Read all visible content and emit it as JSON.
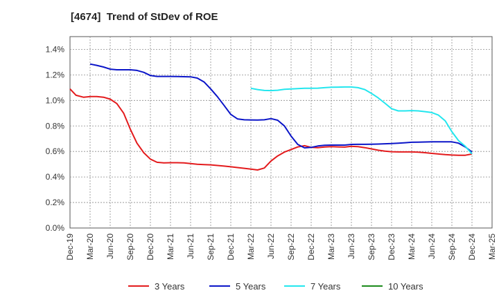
{
  "chart_data": {
    "type": "line",
    "title": "[4674]  Trend of StDev of ROE",
    "xlabel": "",
    "ylabel": "",
    "x_tick_labels": [
      "Dec-19",
      "Mar-20",
      "Jun-20",
      "Sep-20",
      "Dec-20",
      "Mar-21",
      "Jun-21",
      "Sep-21",
      "Dec-21",
      "Mar-22",
      "Jun-22",
      "Sep-22",
      "Dec-22",
      "Mar-23",
      "Jun-23",
      "Sep-23",
      "Dec-23",
      "Mar-24",
      "Jun-24",
      "Sep-24",
      "Dec-24",
      "Mar-25"
    ],
    "y_tick_labels": [
      "0.0%",
      "0.2%",
      "0.4%",
      "0.6%",
      "0.8%",
      "1.0%",
      "1.2%",
      "1.4%"
    ],
    "xlim": [
      0,
      21
    ],
    "ylim": [
      0,
      1.5
    ],
    "grid": true,
    "legend_position": "bottom",
    "series": [
      {
        "name": "3 Years",
        "color": "#e31a1c",
        "points": [
          [
            0,
            1.09
          ],
          [
            0.3,
            1.04
          ],
          [
            0.67,
            1.025
          ],
          [
            1,
            1.03
          ],
          [
            1.33,
            1.03
          ],
          [
            1.67,
            1.025
          ],
          [
            2,
            1.01
          ],
          [
            2.33,
            0.975
          ],
          [
            2.67,
            0.9
          ],
          [
            3,
            0.775
          ],
          [
            3.33,
            0.665
          ],
          [
            3.67,
            0.59
          ],
          [
            4,
            0.54
          ],
          [
            4.33,
            0.515
          ],
          [
            4.67,
            0.51
          ],
          [
            5,
            0.512
          ],
          [
            5.33,
            0.512
          ],
          [
            5.67,
            0.51
          ],
          [
            6,
            0.505
          ],
          [
            6.33,
            0.5
          ],
          [
            6.67,
            0.497
          ],
          [
            7,
            0.495
          ],
          [
            7.33,
            0.49
          ],
          [
            7.67,
            0.485
          ],
          [
            8,
            0.48
          ],
          [
            8.33,
            0.474
          ],
          [
            8.67,
            0.468
          ],
          [
            9,
            0.462
          ],
          [
            9.33,
            0.455
          ],
          [
            9.67,
            0.47
          ],
          [
            10,
            0.525
          ],
          [
            10.33,
            0.565
          ],
          [
            10.67,
            0.595
          ],
          [
            11,
            0.615
          ],
          [
            11.33,
            0.635
          ],
          [
            11.67,
            0.645
          ],
          [
            12,
            0.632
          ],
          [
            12.33,
            0.63
          ],
          [
            12.67,
            0.635
          ],
          [
            13,
            0.638
          ],
          [
            13.33,
            0.636
          ],
          [
            13.67,
            0.634
          ],
          [
            14,
            0.64
          ],
          [
            14.33,
            0.638
          ],
          [
            14.67,
            0.63
          ],
          [
            15,
            0.62
          ],
          [
            15.33,
            0.61
          ],
          [
            15.67,
            0.602
          ],
          [
            16,
            0.598
          ],
          [
            16.33,
            0.596
          ],
          [
            16.67,
            0.596
          ],
          [
            17,
            0.596
          ],
          [
            17.33,
            0.594
          ],
          [
            17.67,
            0.59
          ],
          [
            18,
            0.585
          ],
          [
            18.33,
            0.58
          ],
          [
            18.67,
            0.575
          ],
          [
            19,
            0.572
          ],
          [
            19.33,
            0.57
          ],
          [
            19.67,
            0.57
          ],
          [
            20,
            0.58
          ]
        ]
      },
      {
        "name": "5 Years",
        "color": "#0a14c8",
        "points": [
          [
            1,
            1.285
          ],
          [
            1.33,
            1.275
          ],
          [
            1.67,
            1.262
          ],
          [
            2,
            1.245
          ],
          [
            2.33,
            1.24
          ],
          [
            2.67,
            1.24
          ],
          [
            3,
            1.24
          ],
          [
            3.33,
            1.235
          ],
          [
            3.67,
            1.22
          ],
          [
            4,
            1.195
          ],
          [
            4.33,
            1.188
          ],
          [
            4.67,
            1.188
          ],
          [
            5,
            1.188
          ],
          [
            5.33,
            1.187
          ],
          [
            5.67,
            1.186
          ],
          [
            6,
            1.185
          ],
          [
            6.33,
            1.175
          ],
          [
            6.67,
            1.145
          ],
          [
            7,
            1.09
          ],
          [
            7.33,
            1.03
          ],
          [
            7.67,
            0.96
          ],
          [
            8,
            0.89
          ],
          [
            8.33,
            0.855
          ],
          [
            8.67,
            0.848
          ],
          [
            9,
            0.847
          ],
          [
            9.33,
            0.846
          ],
          [
            9.67,
            0.848
          ],
          [
            10,
            0.857
          ],
          [
            10.33,
            0.845
          ],
          [
            10.67,
            0.8
          ],
          [
            11,
            0.72
          ],
          [
            11.33,
            0.655
          ],
          [
            11.67,
            0.628
          ],
          [
            12,
            0.632
          ],
          [
            12.33,
            0.643
          ],
          [
            12.67,
            0.648
          ],
          [
            13,
            0.65
          ],
          [
            13.33,
            0.65
          ],
          [
            13.67,
            0.65
          ],
          [
            14,
            0.655
          ],
          [
            14.33,
            0.656
          ],
          [
            14.67,
            0.656
          ],
          [
            15,
            0.657
          ],
          [
            15.33,
            0.658
          ],
          [
            15.67,
            0.66
          ],
          [
            16,
            0.662
          ],
          [
            16.33,
            0.665
          ],
          [
            16.67,
            0.668
          ],
          [
            17,
            0.672
          ],
          [
            17.33,
            0.673
          ],
          [
            17.67,
            0.674
          ],
          [
            18,
            0.675
          ],
          [
            18.33,
            0.676
          ],
          [
            18.67,
            0.676
          ],
          [
            19,
            0.675
          ],
          [
            19.33,
            0.665
          ],
          [
            19.67,
            0.635
          ],
          [
            20,
            0.595
          ]
        ]
      },
      {
        "name": "7 Years",
        "color": "#22e6ee",
        "points": [
          [
            9,
            1.095
          ],
          [
            9.33,
            1.085
          ],
          [
            9.67,
            1.078
          ],
          [
            10,
            1.077
          ],
          [
            10.33,
            1.08
          ],
          [
            10.67,
            1.087
          ],
          [
            11,
            1.09
          ],
          [
            11.33,
            1.092
          ],
          [
            11.67,
            1.095
          ],
          [
            12,
            1.095
          ],
          [
            12.33,
            1.096
          ],
          [
            12.67,
            1.1
          ],
          [
            13,
            1.103
          ],
          [
            13.33,
            1.104
          ],
          [
            13.67,
            1.105
          ],
          [
            14,
            1.105
          ],
          [
            14.33,
            1.1
          ],
          [
            14.67,
            1.085
          ],
          [
            15,
            1.055
          ],
          [
            15.33,
            1.02
          ],
          [
            15.67,
            0.978
          ],
          [
            16,
            0.935
          ],
          [
            16.33,
            0.918
          ],
          [
            16.67,
            0.918
          ],
          [
            17,
            0.92
          ],
          [
            17.33,
            0.918
          ],
          [
            17.67,
            0.912
          ],
          [
            18,
            0.905
          ],
          [
            18.33,
            0.885
          ],
          [
            18.67,
            0.84
          ],
          [
            19,
            0.755
          ],
          [
            19.33,
            0.685
          ],
          [
            19.67,
            0.64
          ],
          [
            20,
            0.58
          ]
        ]
      },
      {
        "name": "10 Years",
        "color": "#1a8a1a",
        "points": []
      }
    ]
  }
}
